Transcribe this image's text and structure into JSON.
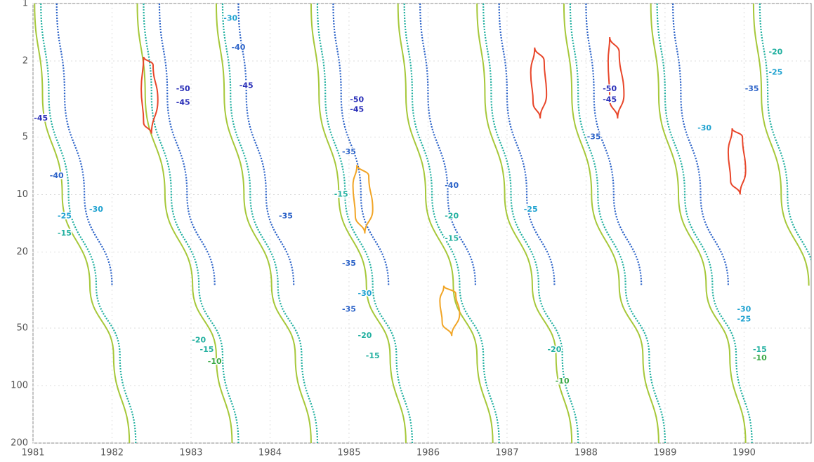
{
  "chart_data": {
    "type": "contour",
    "xlim": [
      1981,
      1990.85
    ],
    "xticks": [
      1981,
      1982,
      1983,
      1984,
      1985,
      1986,
      1987,
      1988,
      1989,
      1990
    ],
    "ylim": [
      1,
      200
    ],
    "yticks": [
      1,
      2,
      5,
      10,
      20,
      50,
      100,
      200
    ],
    "y_log": true,
    "y_inverted": true,
    "grid": true,
    "negative_dashed": true,
    "colormap": {
      "levels": [
        -50,
        -40,
        -30,
        -20,
        -10,
        0,
        10,
        20,
        30,
        40
      ],
      "colors": [
        "#2a2fb8",
        "#2c63c8",
        "#1fa2d0",
        "#22b0a0",
        "#3aa845",
        "#a6c83a",
        "#e3cf2a",
        "#f1a526",
        "#e8462a",
        "#d0154f"
      ]
    },
    "contours": [
      {
        "level": -15,
        "x": [
          1981.1,
          1981.2,
          1981.45,
          1981.8,
          1982.1,
          1982.3
        ],
        "y": [
          1,
          3,
          10,
          30,
          70,
          200
        ]
      },
      {
        "level": 5,
        "x": [
          1981.02,
          1981.12,
          1981.37,
          1981.72,
          1982.02,
          1982.22
        ],
        "y": [
          1,
          3,
          10,
          30,
          70,
          200
        ]
      },
      {
        "level": -35,
        "x": [
          1981.3,
          1981.4,
          1981.65,
          1982.0
        ],
        "y": [
          1,
          3,
          10,
          30
        ]
      },
      {
        "level": -15,
        "x": [
          1982.4,
          1982.5,
          1982.75,
          1983.1,
          1983.4,
          1983.6
        ],
        "y": [
          1,
          3,
          10,
          30,
          70,
          200
        ]
      },
      {
        "level": 5,
        "x": [
          1982.32,
          1982.42,
          1982.67,
          1983.02,
          1983.32,
          1983.52
        ],
        "y": [
          1,
          3,
          10,
          30,
          70,
          200
        ]
      },
      {
        "level": -35,
        "x": [
          1982.6,
          1982.7,
          1982.95,
          1983.3
        ],
        "y": [
          1,
          3,
          10,
          30
        ]
      },
      {
        "level": -15,
        "x": [
          1983.4,
          1983.5,
          1983.75,
          1984.1,
          1984.4,
          1984.6
        ],
        "y": [
          1,
          3,
          10,
          30,
          70,
          200
        ]
      },
      {
        "level": 5,
        "x": [
          1983.32,
          1983.42,
          1983.67,
          1984.02,
          1984.32,
          1984.52
        ],
        "y": [
          1,
          3,
          10,
          30,
          70,
          200
        ]
      },
      {
        "level": -35,
        "x": [
          1983.6,
          1983.7,
          1983.95,
          1984.3
        ],
        "y": [
          1,
          3,
          10,
          30
        ]
      },
      {
        "level": -15,
        "x": [
          1984.6,
          1984.7,
          1984.95,
          1985.3,
          1985.6,
          1985.8
        ],
        "y": [
          1,
          3,
          10,
          30,
          70,
          200
        ]
      },
      {
        "level": 5,
        "x": [
          1984.52,
          1984.62,
          1984.87,
          1985.22,
          1985.52,
          1985.72
        ],
        "y": [
          1,
          3,
          10,
          30,
          70,
          200
        ]
      },
      {
        "level": -35,
        "x": [
          1984.8,
          1984.9,
          1985.15,
          1985.5
        ],
        "y": [
          1,
          3,
          10,
          30
        ]
      },
      {
        "level": -15,
        "x": [
          1985.7,
          1985.8,
          1986.05,
          1986.4,
          1986.7,
          1986.9
        ],
        "y": [
          1,
          3,
          10,
          30,
          70,
          200
        ]
      },
      {
        "level": 5,
        "x": [
          1985.62,
          1985.72,
          1985.97,
          1986.32,
          1986.62,
          1986.82
        ],
        "y": [
          1,
          3,
          10,
          30,
          70,
          200
        ]
      },
      {
        "level": -35,
        "x": [
          1985.9,
          1986.0,
          1986.25,
          1986.6
        ],
        "y": [
          1,
          3,
          10,
          30
        ]
      },
      {
        "level": -15,
        "x": [
          1986.7,
          1986.8,
          1987.05,
          1987.4,
          1987.7,
          1987.9
        ],
        "y": [
          1,
          3,
          10,
          30,
          70,
          200
        ]
      },
      {
        "level": 5,
        "x": [
          1986.62,
          1986.72,
          1986.97,
          1987.32,
          1987.62,
          1987.82
        ],
        "y": [
          1,
          3,
          10,
          30,
          70,
          200
        ]
      },
      {
        "level": -35,
        "x": [
          1986.9,
          1987.0,
          1987.25,
          1987.6
        ],
        "y": [
          1,
          3,
          10,
          30
        ]
      },
      {
        "level": -15,
        "x": [
          1987.8,
          1987.9,
          1988.15,
          1988.5,
          1988.8,
          1989.0
        ],
        "y": [
          1,
          3,
          10,
          30,
          70,
          200
        ]
      },
      {
        "level": 5,
        "x": [
          1987.72,
          1987.82,
          1988.07,
          1988.42,
          1988.72,
          1988.92
        ],
        "y": [
          1,
          3,
          10,
          30,
          70,
          200
        ]
      },
      {
        "level": -35,
        "x": [
          1988.0,
          1988.1,
          1988.35,
          1988.7
        ],
        "y": [
          1,
          3,
          10,
          30
        ]
      },
      {
        "level": -15,
        "x": [
          1988.9,
          1989.0,
          1989.25,
          1989.6,
          1989.9,
          1990.1
        ],
        "y": [
          1,
          3,
          10,
          30,
          70,
          200
        ]
      },
      {
        "level": 5,
        "x": [
          1988.82,
          1988.92,
          1989.17,
          1989.52,
          1989.82,
          1990.02
        ],
        "y": [
          1,
          3,
          10,
          30,
          70,
          200
        ]
      },
      {
        "level": -35,
        "x": [
          1989.1,
          1989.2,
          1989.45,
          1989.8
        ],
        "y": [
          1,
          3,
          10,
          30
        ]
      },
      {
        "level": -15,
        "x": [
          1990.2,
          1990.3,
          1990.55,
          1990.9
        ],
        "y": [
          1,
          3,
          10,
          30
        ]
      },
      {
        "level": 5,
        "x": [
          1990.12,
          1990.22,
          1990.47,
          1990.82
        ],
        "y": [
          1,
          3,
          10,
          30
        ]
      },
      {
        "level": 35,
        "x": [
          1982.4,
          1982.52,
          1982.58,
          1982.5,
          1982.4,
          1982.37,
          1982.4
        ],
        "y": [
          1.9,
          2.1,
          3.2,
          4.8,
          4.2,
          2.8,
          1.9
        ]
      },
      {
        "level": 20,
        "x": [
          1985.1,
          1985.25,
          1985.3,
          1985.2,
          1985.08,
          1985.05,
          1985.1
        ],
        "y": [
          7,
          8,
          12,
          16,
          13,
          9,
          7
        ]
      },
      {
        "level": 35,
        "x": [
          1987.35,
          1987.47,
          1987.5,
          1987.42,
          1987.33,
          1987.3,
          1987.35
        ],
        "y": [
          1.7,
          2,
          3,
          4,
          3.3,
          2.3,
          1.7
        ]
      },
      {
        "level": 35,
        "x": [
          1988.3,
          1988.42,
          1988.48,
          1988.4,
          1988.3,
          1988.28,
          1988.3
        ],
        "y": [
          1.5,
          1.8,
          3,
          4,
          3.2,
          2,
          1.5
        ]
      },
      {
        "level": 35,
        "x": [
          1989.85,
          1989.98,
          1990.02,
          1989.95,
          1989.83,
          1989.8,
          1989.85
        ],
        "y": [
          4.5,
          5,
          7.5,
          10,
          8.5,
          6,
          4.5
        ]
      },
      {
        "level": 20,
        "x": [
          1986.2,
          1986.35,
          1986.4,
          1986.3,
          1986.18,
          1986.15,
          1986.2
        ],
        "y": [
          30,
          33,
          42,
          55,
          47,
          36,
          30
        ]
      }
    ],
    "contour_labels": {
      "x": [
        1982.9,
        1982.9,
        1981.1,
        1981.3,
        1981.4,
        1981.4,
        1981.8,
        1983.7,
        1983.6,
        1983.5,
        1985.1,
        1985.1,
        1985.0,
        1984.9,
        1984.2,
        1985.0,
        1985.2,
        1985.0,
        1985.2,
        1985.3,
        1986.3,
        1986.3,
        1986.3,
        1987.3,
        1988.3,
        1988.3,
        1988.1,
        1989.5,
        1990.1,
        1990.4,
        1990.4,
        1990.0,
        1990.0,
        1990.2,
        1990.2,
        1987.6,
        1987.7,
        1983.3,
        1983.1,
        1983.2
      ],
      "y": [
        2.8,
        3.3,
        4,
        8,
        13,
        16,
        12,
        2.7,
        1.7,
        1.2,
        3.2,
        3.6,
        6,
        10,
        13,
        23,
        33,
        40,
        55,
        70,
        9,
        13,
        17,
        12,
        3.2,
        2.8,
        5,
        4.5,
        2.8,
        1.8,
        2.3,
        40,
        45,
        65,
        72,
        65,
        95,
        75,
        58,
        65
      ],
      "values": [
        -50,
        -45,
        -45,
        -40,
        -25,
        -15,
        -30,
        -45,
        -40,
        -30,
        -50,
        -45,
        -35,
        -15,
        -35,
        -35,
        -30,
        -35,
        -20,
        -15,
        -40,
        -20,
        -15,
        -25,
        -45,
        -50,
        -35,
        -30,
        -35,
        -20,
        -25,
        -30,
        -25,
        -15,
        -10,
        -20,
        -10,
        -10,
        -20,
        -15
      ]
    }
  }
}
